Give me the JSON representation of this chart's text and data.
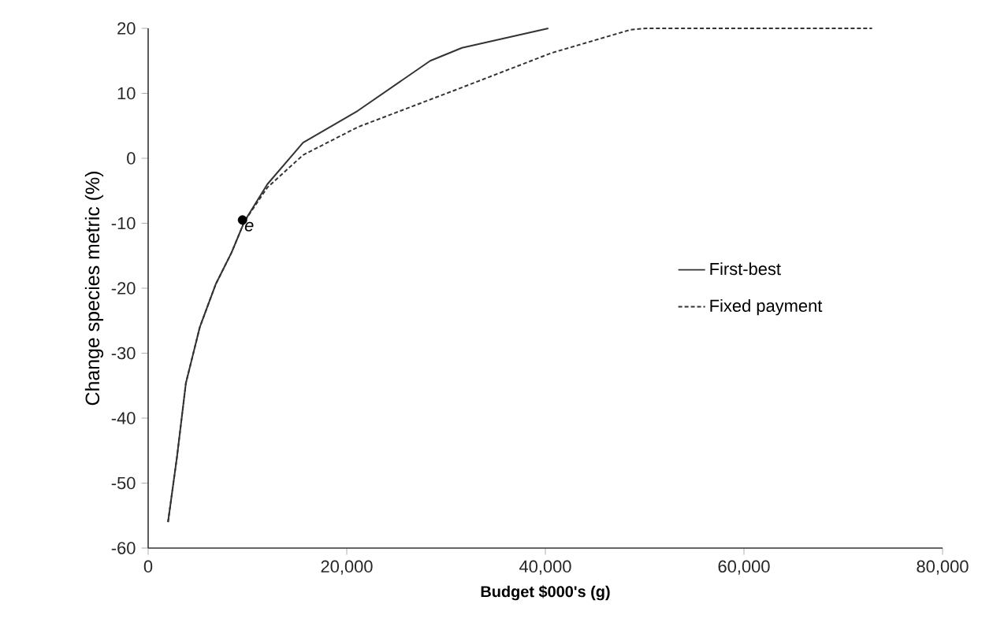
{
  "chart_data": {
    "type": "line",
    "xlabel": "Budget  $000's (g)",
    "ylabel": "Change species metric (%)",
    "xlim": [
      0,
      80000
    ],
    "ylim": [
      -60,
      20
    ],
    "xticks": [
      0,
      {
        "value": 20000,
        "label": "20,000"
      },
      {
        "value": 40000,
        "label": "40,000"
      },
      {
        "value": 60000,
        "label": "60,000"
      },
      {
        "value": 80000,
        "label": "80,000"
      }
    ],
    "yticks": [
      -60,
      -50,
      -40,
      -30,
      -20,
      -10,
      0,
      10,
      20
    ],
    "legend": "right",
    "grid": false,
    "marker": "none",
    "series": [
      {
        "name": "First-best",
        "color": "#333333",
        "line_style": "solid",
        "x": [
          2000,
          2900,
          3800,
          5200,
          6800,
          8400,
          9700,
          12000,
          15600,
          21100,
          28400,
          31600,
          40300
        ],
        "values": [
          -56,
          -46,
          -34.6,
          -26,
          -19.4,
          -14.5,
          -9.7,
          -4,
          2.4,
          7.3,
          15,
          17,
          20
        ]
      },
      {
        "name": "Fixed payment",
        "color": "#333333",
        "line_style": "dashed",
        "x": [
          2000,
          2900,
          3800,
          5200,
          6800,
          8400,
          9700,
          12000,
          15600,
          21100,
          31600,
          40600,
          48600,
          50200,
          72900
        ],
        "values": [
          -56,
          -46,
          -34.6,
          -26,
          -19.4,
          -14.5,
          -9.7,
          -4.5,
          0.5,
          4.8,
          10.9,
          16.2,
          19.8,
          20,
          20
        ]
      },
      {
        "type": "scatter",
        "color": "#000000",
        "marker": "circle",
        "x": [
          9500
        ],
        "values": [
          -9.5
        ]
      }
    ],
    "annotations": [
      {
        "text": "e",
        "x": 9500,
        "y": -9.5
      }
    ]
  }
}
